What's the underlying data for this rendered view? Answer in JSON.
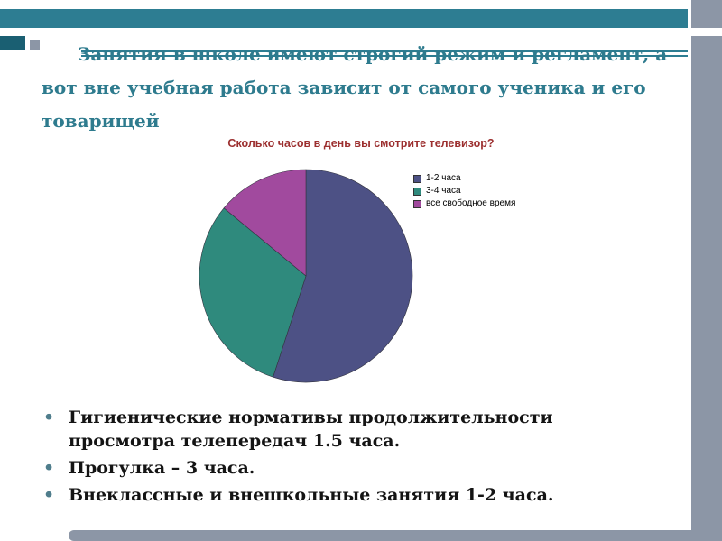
{
  "slide": {
    "title_lines": [
      "Занятия в школе имеют строгий режим и регламент, а",
      "вот вне учебная работа зависит от самого ученика и его",
      "товарищей"
    ]
  },
  "chart_data": {
    "type": "pie",
    "title": "Сколько часов в день вы смотрите телевизор?",
    "labels": [
      "1-2 часа",
      "3-4 часа",
      "все свободное время"
    ],
    "values": [
      55,
      31,
      14
    ],
    "unit": "percent (estimated from slice angles)",
    "colors": [
      "#4d5185",
      "#2f8a7d",
      "#a14a9e"
    ],
    "legend_position": "right",
    "start_angle_deg": 0,
    "direction": "clockwise"
  },
  "bullets": [
    "Гигиенические нормативы продолжительности просмотра телепередач 1.5 часа.",
    "Прогулка – 3 часа.",
    "Внеклассные и внешкольные занятия 1-2 часа."
  ],
  "theme": {
    "background_gray": "#8c96a6",
    "accent_teal": "#2d7d92",
    "accent_teal_dark": "#1a5f72",
    "title_text_color": "#2e7b8e",
    "chart_title_color": "#9c2f2f",
    "bullet_marker_color": "#4f7d8c"
  }
}
